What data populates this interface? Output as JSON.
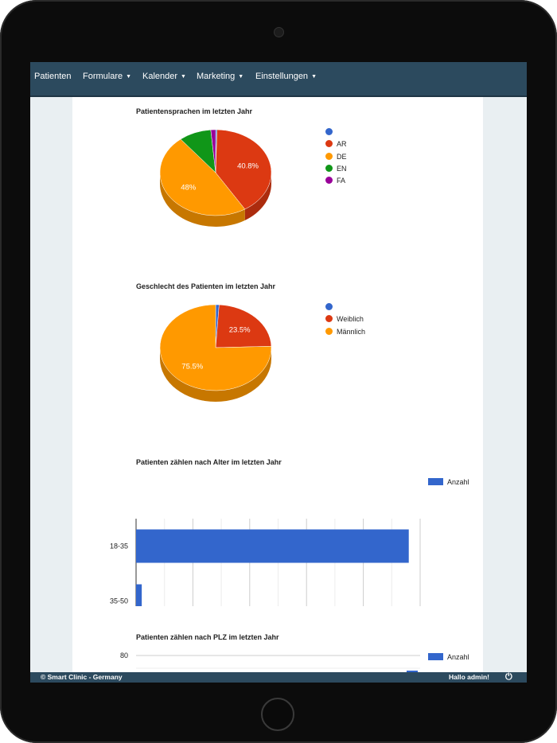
{
  "nav": {
    "items": [
      {
        "label": "Patienten",
        "dropdown": false
      },
      {
        "label": "Formulare",
        "dropdown": true
      },
      {
        "label": "Kalender",
        "dropdown": true
      },
      {
        "label": "Marketing",
        "dropdown": true
      },
      {
        "label": "Einstellungen",
        "dropdown": true
      }
    ]
  },
  "chart_data": [
    {
      "type": "pie",
      "title": "Patientensprachen im letzten Jahr",
      "legend_position": "right",
      "slices": [
        {
          "label": "",
          "value": 0.4,
          "color": "#3366cc"
        },
        {
          "label": "AR",
          "value": 40.8,
          "color": "#dc3912",
          "display": "40.8%"
        },
        {
          "label": "DE",
          "value": 48,
          "color": "#ff9900",
          "display": "48%"
        },
        {
          "label": "EN",
          "value": 9.4,
          "color": "#109618"
        },
        {
          "label": "FA",
          "value": 1.4,
          "color": "#990099"
        }
      ]
    },
    {
      "type": "pie",
      "title": "Geschlecht des Patienten im letzten Jahr",
      "legend_position": "right",
      "slices": [
        {
          "label": "",
          "value": 1,
          "color": "#3366cc"
        },
        {
          "label": "Weiblich",
          "value": 23.5,
          "color": "#dc3912",
          "display": "23.5%"
        },
        {
          "label": "Männlich",
          "value": 75.5,
          "color": "#ff9900",
          "display": "75.5%"
        }
      ]
    },
    {
      "type": "bar",
      "orientation": "horizontal",
      "title": "Patienten zählen nach Alter im letzten Jahr",
      "categories": [
        "18-35",
        "35-50"
      ],
      "series": [
        {
          "name": "Anzahl",
          "values": [
            96,
            2
          ],
          "color": "#3366cc"
        }
      ],
      "xlim": [
        0,
        100
      ],
      "xticks": [
        "0",
        "20",
        "40",
        "60",
        "80",
        "100"
      ],
      "grid": true,
      "legend_position": "right"
    },
    {
      "type": "bar",
      "title": "Patienten zählen nach PLZ im letzten Jahr",
      "series": [
        {
          "name": "Anzahl",
          "color": "#3366cc"
        }
      ],
      "yticks": [
        "80"
      ],
      "legend_position": "right"
    }
  ],
  "footer": {
    "copyright": "© Smart Clinic - Germany",
    "greeting": "Hallo admin!"
  }
}
